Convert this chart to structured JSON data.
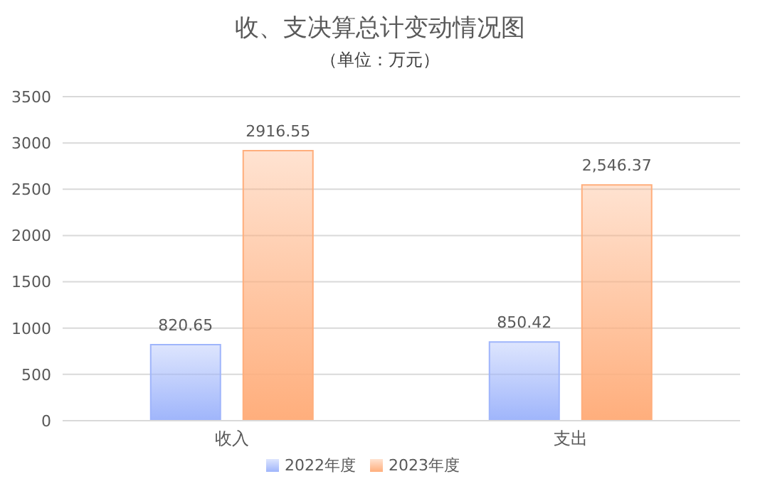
{
  "chart_data": {
    "type": "bar",
    "title": "收、支决算总计变动情况图",
    "subtitle": "（单位：万元）",
    "categories": [
      "收入",
      "支出"
    ],
    "series": [
      {
        "name": "2022年度",
        "color": "#9fb5fb",
        "values": [
          820.65,
          850.42
        ],
        "value_labels": [
          "820.65",
          "850.42"
        ]
      },
      {
        "name": "2023年度",
        "color": "#ffae7c",
        "values": [
          2916.55,
          2546.37
        ],
        "value_labels": [
          "2916.55",
          "2,546.37"
        ]
      }
    ],
    "ylim": [
      0,
      3500
    ],
    "yticks": [
      0,
      500,
      1000,
      1500,
      2000,
      2500,
      3000,
      3500
    ],
    "grid": "y",
    "legend": "bottom"
  }
}
